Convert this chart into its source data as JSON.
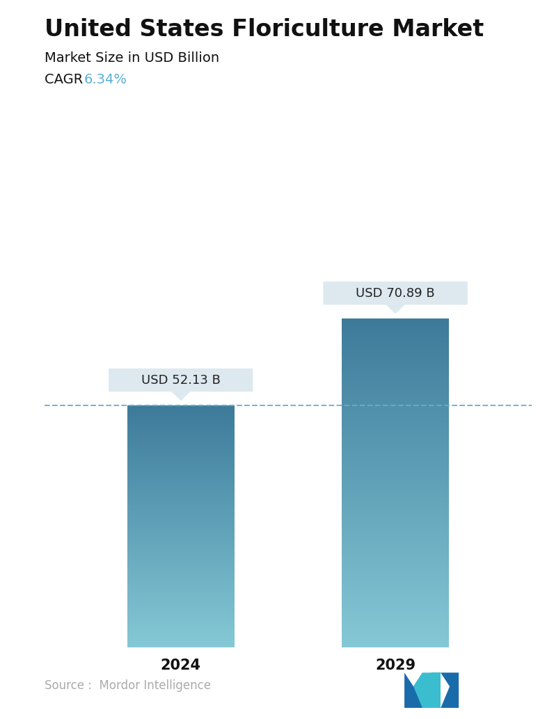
{
  "title": "United States Floriculture Market",
  "subtitle": "Market Size in USD Billion",
  "cagr_label": "CAGR  ",
  "cagr_value": "6.34%",
  "cagr_color": "#5BAFD6",
  "categories": [
    "2024",
    "2029"
  ],
  "values": [
    52.13,
    70.89
  ],
  "labels": [
    "USD 52.13 B",
    "USD 70.89 B"
  ],
  "bar_color_top": "#3D7A9A",
  "bar_color_bottom": "#85C8D5",
  "dashed_line_color": "#6AAEC8",
  "dashed_line_value": 52.13,
  "callout_bg": "#DDE9EF",
  "source_text": "Source :  Mordor Intelligence",
  "source_color": "#aaaaaa",
  "background_color": "#ffffff",
  "title_fontsize": 24,
  "subtitle_fontsize": 14,
  "cagr_fontsize": 14,
  "label_fontsize": 13,
  "tick_fontsize": 15,
  "source_fontsize": 12,
  "ylim": [
    0,
    90
  ],
  "bar_width": 0.22,
  "x_positions": [
    0.28,
    0.72
  ]
}
